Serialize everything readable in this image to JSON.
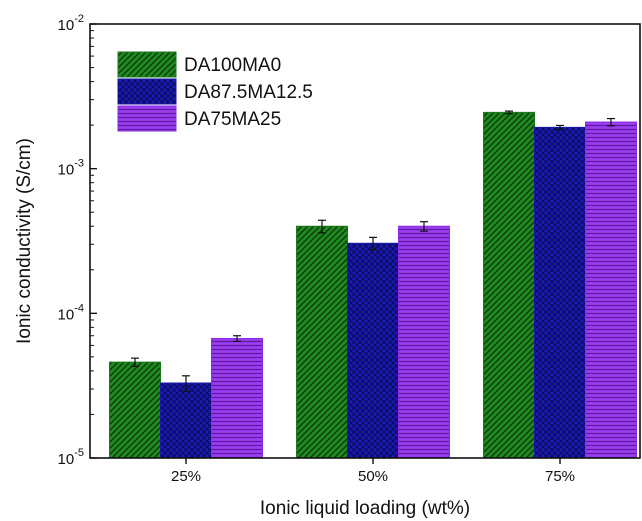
{
  "chart_data": {
    "type": "bar",
    "xlabel": "Ionic liquid loading (wt%)",
    "ylabel": "Ionic conductivity (S/cm)",
    "yscale": "log",
    "ylim": [
      1e-05,
      0.01
    ],
    "y_ticks": [
      {
        "value": 1e-05,
        "base": "10",
        "exp": "-5"
      },
      {
        "value": 0.0001,
        "base": "10",
        "exp": "-4"
      },
      {
        "value": 0.001,
        "base": "10",
        "exp": "-3"
      },
      {
        "value": 0.01,
        "base": "10",
        "exp": "-2"
      }
    ],
    "categories": [
      "25%",
      "50%",
      "75%"
    ],
    "legend_position": "top-left",
    "series": [
      {
        "name": "DA100MA0",
        "values": [
          4.6e-05,
          0.0004,
          0.00245
        ],
        "errors": [
          3e-06,
          4e-05,
          5e-05
        ],
        "color": "#1f7a1f",
        "pattern": "diagonal"
      },
      {
        "name": "DA87.5MA12.5",
        "values": [
          3.3e-05,
          0.000305,
          0.00193
        ],
        "errors": [
          4e-06,
          3e-05,
          6e-05
        ],
        "color": "#1a1aa8",
        "pattern": "crosshatch"
      },
      {
        "name": "DA75MA25",
        "values": [
          6.7e-05,
          0.0004,
          0.0021
        ],
        "errors": [
          3e-06,
          3e-05,
          0.00012
        ],
        "color": "#8a2be2",
        "pattern": "horizontal"
      }
    ]
  }
}
